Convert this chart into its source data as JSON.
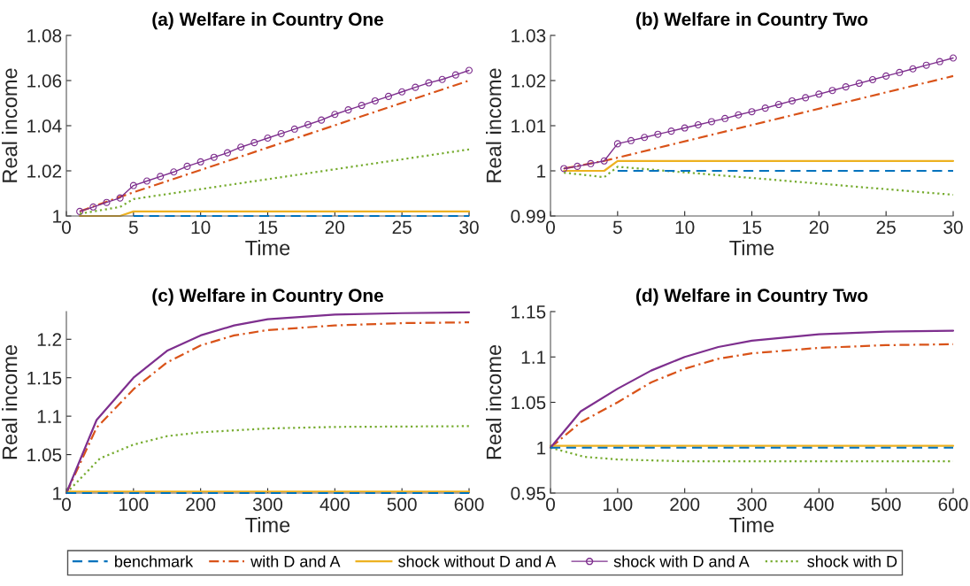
{
  "chart_data": [
    {
      "type": "line",
      "title": "(a) Welfare in Country One",
      "xlabel": "Time",
      "ylabel": "Real income",
      "xlim": [
        0,
        30
      ],
      "xticks": [
        0,
        5,
        10,
        15,
        20,
        25,
        30
      ],
      "ylim": [
        1,
        1.08
      ],
      "yticks": [
        1,
        1.02,
        1.04,
        1.06,
        1.08
      ],
      "grid": false,
      "legend": "bottom",
      "series": [
        {
          "name": "benchmark",
          "color": "#0072bd",
          "line_style": "dashed",
          "x": [
            5,
            30
          ],
          "values": [
            1,
            1
          ]
        },
        {
          "name": "with D and A",
          "color": "#d95319",
          "line_style": "dashdot",
          "x": [
            1,
            4,
            30
          ],
          "values": [
            1.002,
            1.0085,
            1.06
          ]
        },
        {
          "name": "shock without D and A",
          "color": "#edb120",
          "line_style": "solid",
          "x": [
            1,
            4,
            5,
            30
          ],
          "values": [
            1,
            1,
            1.002,
            1.002
          ]
        },
        {
          "name": "shock with D and A",
          "color": "#7e2f8e",
          "line_style": "solid",
          "marker": "circle",
          "x": [
            1,
            2,
            3,
            4,
            5,
            6,
            7,
            8,
            9,
            10,
            11,
            12,
            13,
            14,
            15,
            16,
            17,
            18,
            19,
            20,
            21,
            22,
            23,
            24,
            25,
            26,
            27,
            28,
            29,
            30
          ],
          "values": [
            1.002,
            1.004,
            1.006,
            1.008,
            1.0135,
            1.0155,
            1.0175,
            1.0195,
            1.022,
            1.024,
            1.026,
            1.028,
            1.0305,
            1.0325,
            1.0345,
            1.0365,
            1.0385,
            1.0405,
            1.0425,
            1.045,
            1.047,
            1.049,
            1.051,
            1.053,
            1.055,
            1.057,
            1.059,
            1.0605,
            1.0625,
            1.0645
          ]
        },
        {
          "name": "shock with D",
          "color": "#77ac30",
          "line_style": "dotted",
          "x": [
            1,
            4,
            5,
            30
          ],
          "values": [
            1.001,
            1.004,
            1.0075,
            1.0295
          ]
        }
      ]
    },
    {
      "type": "line",
      "title": "(b) Welfare in Country Two",
      "xlabel": "Time",
      "ylabel": "Real income",
      "xlim": [
        0,
        30
      ],
      "xticks": [
        0,
        5,
        10,
        15,
        20,
        25,
        30
      ],
      "ylim": [
        0.99,
        1.03
      ],
      "yticks": [
        0.99,
        1,
        1.01,
        1.02,
        1.03
      ],
      "grid": false,
      "series": [
        {
          "color": "#0072bd",
          "line_style": "dashed",
          "x": [
            5,
            30
          ],
          "values": [
            1,
            1
          ]
        },
        {
          "color": "#d95319",
          "line_style": "dashdot",
          "x": [
            1,
            4,
            30
          ],
          "values": [
            1.0005,
            1.0022,
            1.021
          ]
        },
        {
          "color": "#edb120",
          "line_style": "solid",
          "x": [
            1,
            4,
            5,
            30
          ],
          "values": [
            1,
            1,
            1.0022,
            1.0022
          ]
        },
        {
          "color": "#7e2f8e",
          "line_style": "solid",
          "marker": "circle",
          "x": [
            1,
            2,
            3,
            4,
            5,
            6,
            7,
            8,
            9,
            10,
            11,
            12,
            13,
            14,
            15,
            16,
            17,
            18,
            19,
            20,
            21,
            22,
            23,
            24,
            25,
            26,
            27,
            28,
            29,
            30
          ],
          "values": [
            1.0005,
            1.001,
            1.0016,
            1.0022,
            1.006,
            1.0067,
            1.0074,
            1.0081,
            1.0088,
            1.0095,
            1.0102,
            1.0109,
            1.0116,
            1.0124,
            1.0131,
            1.0139,
            1.0147,
            1.0155,
            1.0162,
            1.017,
            1.0178,
            1.0186,
            1.0194,
            1.0202,
            1.021,
            1.0218,
            1.0226,
            1.0234,
            1.0242,
            1.025
          ]
        },
        {
          "color": "#77ac30",
          "line_style": "dotted",
          "x": [
            1,
            4,
            5,
            30
          ],
          "values": [
            0.9996,
            0.9986,
            1.0009,
            0.9947
          ]
        }
      ]
    },
    {
      "type": "line",
      "title": "(c) Welfare in Country One",
      "xlabel": "Time",
      "ylabel": "Real income",
      "xlim": [
        0,
        600
      ],
      "xticks": [
        0,
        100,
        200,
        300,
        400,
        500,
        600
      ],
      "ylim": [
        1,
        1.236
      ],
      "yticks": [
        1,
        1.05,
        1.1,
        1.15,
        1.2
      ],
      "grid": false,
      "series": [
        {
          "color": "#0072bd",
          "line_style": "dashed",
          "x": [
            0,
            600
          ],
          "values": [
            1,
            1
          ]
        },
        {
          "color": "#d95319",
          "line_style": "dashdot",
          "x": [
            0,
            45,
            100,
            150,
            200,
            250,
            300,
            400,
            500,
            600
          ],
          "values": [
            1,
            1.085,
            1.135,
            1.17,
            1.192,
            1.205,
            1.212,
            1.218,
            1.221,
            1.222
          ]
        },
        {
          "color": "#edb120",
          "line_style": "solid",
          "x": [
            0,
            600
          ],
          "values": [
            1.002,
            1.002
          ]
        },
        {
          "color": "#7e2f8e",
          "line_style": "solid",
          "x": [
            0,
            45,
            100,
            150,
            200,
            250,
            300,
            400,
            500,
            600
          ],
          "values": [
            1,
            1.095,
            1.15,
            1.185,
            1.205,
            1.218,
            1.226,
            1.232,
            1.234,
            1.235
          ]
        },
        {
          "color": "#77ac30",
          "line_style": "dotted",
          "x": [
            0,
            50,
            100,
            150,
            200,
            300,
            400,
            600
          ],
          "values": [
            1,
            1.045,
            1.063,
            1.074,
            1.079,
            1.084,
            1.086,
            1.087
          ]
        }
      ]
    },
    {
      "type": "line",
      "title": "(d) Welfare in Country Two",
      "xlabel": "Time",
      "ylabel": "Real income",
      "xlim": [
        0,
        600
      ],
      "xticks": [
        0,
        100,
        200,
        300,
        400,
        500,
        600
      ],
      "ylim": [
        0.95,
        1.15
      ],
      "yticks": [
        0.95,
        1,
        1.05,
        1.1,
        1.15
      ],
      "grid": false,
      "series": [
        {
          "color": "#0072bd",
          "line_style": "dashed",
          "x": [
            0,
            600
          ],
          "values": [
            1,
            1
          ]
        },
        {
          "color": "#d95319",
          "line_style": "dashdot",
          "x": [
            0,
            45,
            100,
            150,
            200,
            250,
            300,
            400,
            500,
            600
          ],
          "values": [
            1,
            1.028,
            1.05,
            1.072,
            1.087,
            1.098,
            1.104,
            1.11,
            1.113,
            1.114
          ]
        },
        {
          "color": "#edb120",
          "line_style": "solid",
          "x": [
            0,
            600
          ],
          "values": [
            1.002,
            1.002
          ]
        },
        {
          "color": "#7e2f8e",
          "line_style": "solid",
          "x": [
            0,
            45,
            100,
            150,
            200,
            250,
            300,
            400,
            500,
            600
          ],
          "values": [
            1,
            1.04,
            1.065,
            1.085,
            1.1,
            1.111,
            1.118,
            1.125,
            1.128,
            1.129
          ]
        },
        {
          "color": "#77ac30",
          "line_style": "dotted",
          "x": [
            0,
            50,
            100,
            150,
            200,
            600
          ],
          "values": [
            1,
            0.99,
            0.987,
            0.986,
            0.985,
            0.985
          ]
        }
      ]
    }
  ]
}
